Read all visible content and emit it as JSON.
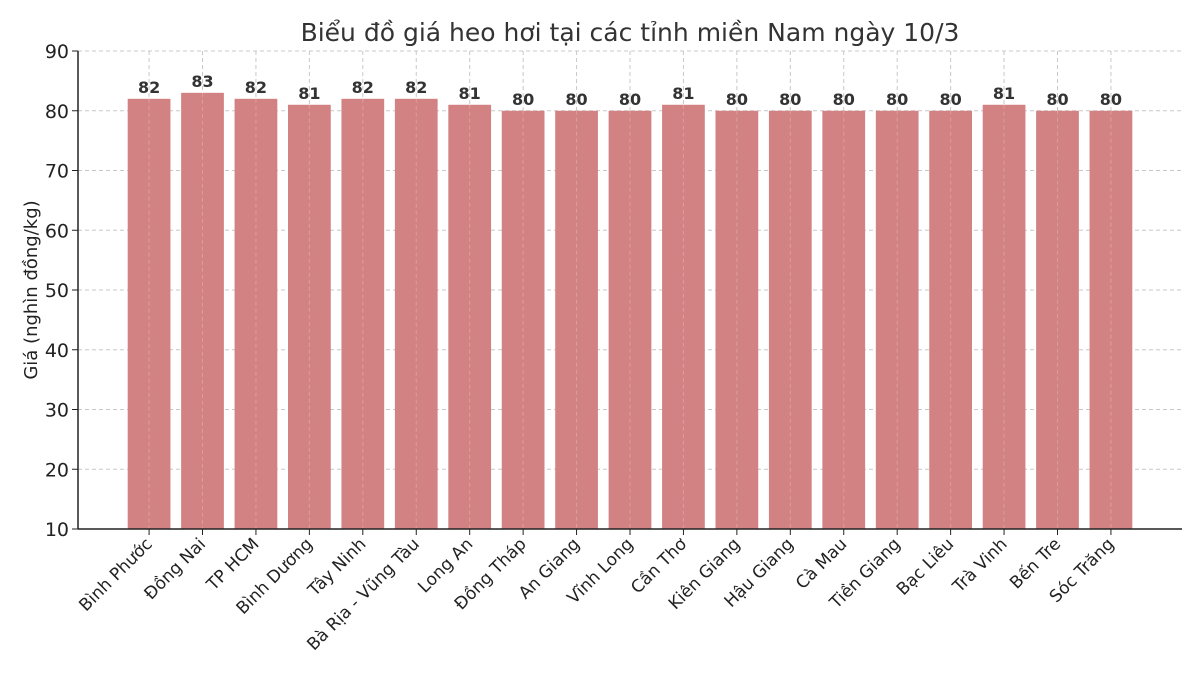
{
  "chart_data": {
    "type": "bar",
    "title": "Biểu đồ giá heo hơi tại các tỉnh miền Nam ngày 10/3",
    "xlabel": "",
    "ylabel": "Giá (nghìn đồng/kg)",
    "ylim": [
      10,
      90
    ],
    "yticks": [
      10,
      20,
      30,
      40,
      50,
      60,
      70,
      80,
      90
    ],
    "grid": true,
    "categories": [
      "Bình Phước",
      "Đồng Nai",
      "TP HCM",
      "Bình Dương",
      "Tây Ninh",
      "Bà Rịa - Vũng Tàu",
      "Long An",
      "Đồng Tháp",
      "An Giang",
      "Vĩnh Long",
      "Cần Thơ",
      "Kiên Giang",
      "Hậu Giang",
      "Cà Mau",
      "Tiền Giang",
      "Bạc Liêu",
      "Trà Vinh",
      "Bến Tre",
      "Sóc Trăng"
    ],
    "values": [
      82,
      83,
      82,
      81,
      82,
      82,
      81,
      80,
      80,
      80,
      81,
      80,
      80,
      80,
      80,
      80,
      81,
      80,
      80
    ],
    "bar_color": "#d38284",
    "data_labels": true
  }
}
